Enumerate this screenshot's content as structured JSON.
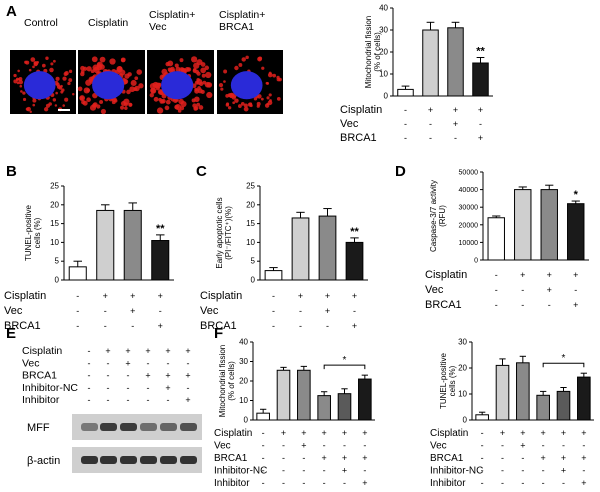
{
  "figure": {
    "panel_letters": [
      "A",
      "B",
      "C",
      "D",
      "E",
      "F"
    ],
    "image_panel": {
      "labels": [
        "Control",
        "Cisplatin",
        "Cisplatin+\nVec",
        "Cisplatin+\nBRCA1"
      ]
    },
    "western_blot": {
      "condition_rows": [
        {
          "label": "Cisplatin",
          "signs": [
            "-",
            "+",
            "+",
            "+",
            "+",
            "+"
          ]
        },
        {
          "label": "Vec",
          "signs": [
            "-",
            "-",
            "+",
            "-",
            "-",
            "-"
          ]
        },
        {
          "label": "BRCA1",
          "signs": [
            "-",
            "-",
            "-",
            "+",
            "+",
            "+"
          ]
        },
        {
          "label": "Inhibitor-NC",
          "signs": [
            "-",
            "-",
            "-",
            "-",
            "+",
            "-"
          ]
        },
        {
          "label": "Inhibitor",
          "signs": [
            "-",
            "-",
            "-",
            "-",
            "-",
            "+"
          ]
        }
      ],
      "bands": [
        {
          "label": "MFF",
          "intensity": [
            0.55,
            0.85,
            0.85,
            0.6,
            0.65,
            0.75
          ]
        },
        {
          "label": "β-actin",
          "intensity": [
            0.9,
            0.9,
            0.9,
            0.9,
            0.9,
            0.9
          ]
        }
      ]
    },
    "colors": {
      "bar_fills": [
        "#ffffff",
        "#cfcfcf",
        "#8a8a8a",
        "#1a1a1a"
      ],
      "f_extra_fill": "#5a5a5a",
      "image_bg": "#000000",
      "nucleus": "#2a2ad8",
      "mito": "#e0201c"
    }
  },
  "chart_data": [
    {
      "id": "A",
      "type": "bar",
      "ylabel": "Mitochondrial fission\n(% of cells)",
      "ylim": [
        0,
        40
      ],
      "yticks": [
        0,
        10,
        20,
        30,
        40
      ],
      "values": [
        3,
        30,
        31,
        15
      ],
      "errors": [
        1.5,
        3.5,
        2.5,
        2.5
      ],
      "marks": [
        "",
        "",
        "",
        "**"
      ],
      "condition_rows": [
        {
          "label": "Cisplatin",
          "signs": [
            "-",
            "+",
            "+",
            "+"
          ]
        },
        {
          "label": "Vec",
          "signs": [
            "-",
            "-",
            "+",
            "-"
          ]
        },
        {
          "label": "BRCA1",
          "signs": [
            "-",
            "-",
            "-",
            "+"
          ]
        }
      ]
    },
    {
      "id": "B",
      "type": "bar",
      "ylabel": "TUNEL-positive\ncells (%)",
      "ylim": [
        0,
        25
      ],
      "yticks": [
        0,
        5,
        10,
        15,
        20,
        25
      ],
      "values": [
        3.5,
        18.5,
        18.5,
        10.5
      ],
      "errors": [
        1.5,
        1.5,
        2,
        1.5
      ],
      "marks": [
        "",
        "",
        "",
        "**"
      ],
      "condition_rows": [
        {
          "label": "Cisplatin",
          "signs": [
            "-",
            "+",
            "+",
            "+"
          ]
        },
        {
          "label": "Vec",
          "signs": [
            "-",
            "-",
            "+",
            "-"
          ]
        },
        {
          "label": "BRCA1",
          "signs": [
            "-",
            "-",
            "-",
            "+"
          ]
        }
      ]
    },
    {
      "id": "C",
      "type": "bar",
      "ylabel": "Early apoptotic cells\n(PI⁻/FITC⁺)(%)",
      "ylim": [
        0,
        25
      ],
      "yticks": [
        0,
        5,
        10,
        15,
        20,
        25
      ],
      "values": [
        2.5,
        16.5,
        17,
        10
      ],
      "errors": [
        0.8,
        1.5,
        2,
        1.2
      ],
      "marks": [
        "",
        "",
        "",
        "**"
      ],
      "condition_rows": [
        {
          "label": "Cisplatin",
          "signs": [
            "-",
            "+",
            "+",
            "+"
          ]
        },
        {
          "label": "Vec",
          "signs": [
            "-",
            "-",
            "+",
            "-"
          ]
        },
        {
          "label": "BRCA1",
          "signs": [
            "-",
            "-",
            "-",
            "+"
          ]
        }
      ]
    },
    {
      "id": "D",
      "type": "bar",
      "ylabel": "Caspase-3/7 activity\n(RFU)",
      "ylim": [
        0,
        50000
      ],
      "yticks": [
        0,
        10000,
        20000,
        30000,
        40000,
        50000
      ],
      "values": [
        24000,
        40000,
        40000,
        32000
      ],
      "errors": [
        1000,
        1500,
        2500,
        1500
      ],
      "marks": [
        "",
        "",
        "",
        "*"
      ],
      "condition_rows": [
        {
          "label": "Cisplatin",
          "signs": [
            "-",
            "+",
            "+",
            "+"
          ]
        },
        {
          "label": "Vec",
          "signs": [
            "-",
            "-",
            "+",
            "-"
          ]
        },
        {
          "label": "BRCA1",
          "signs": [
            "-",
            "-",
            "-",
            "+"
          ]
        }
      ]
    },
    {
      "id": "F1",
      "type": "bar",
      "ylabel": "Mitochondrial fission\n(% of cells)",
      "ylim": [
        0,
        40
      ],
      "yticks": [
        0,
        10,
        20,
        30,
        40
      ],
      "values": [
        3.5,
        25.5,
        25.5,
        12.5,
        13.5,
        21
      ],
      "errors": [
        2,
        1.5,
        2,
        2,
        2.5,
        2
      ],
      "marks": [
        "",
        "",
        "",
        "",
        "",
        ""
      ],
      "bracket": {
        "from": 3,
        "to": 5,
        "label": "*"
      },
      "condition_rows": [
        {
          "label": "Cisplatin",
          "signs": [
            "-",
            "+",
            "+",
            "+",
            "+",
            "+"
          ]
        },
        {
          "label": "Vec",
          "signs": [
            "-",
            "-",
            "+",
            "-",
            "-",
            "-"
          ]
        },
        {
          "label": "BRCA1",
          "signs": [
            "-",
            "-",
            "-",
            "+",
            "+",
            "+"
          ]
        },
        {
          "label": "Inhibitor-NC",
          "signs": [
            "-",
            "-",
            "-",
            "-",
            "+",
            "-"
          ]
        },
        {
          "label": "Inhibitor",
          "signs": [
            "-",
            "-",
            "-",
            "-",
            "-",
            "+"
          ]
        }
      ]
    },
    {
      "id": "F2",
      "type": "bar",
      "ylabel": "TUNEL-positive\ncells (%)",
      "ylim": [
        0,
        30
      ],
      "yticks": [
        0,
        10,
        20,
        30
      ],
      "values": [
        2,
        21,
        22,
        9.5,
        11,
        16.5
      ],
      "errors": [
        1,
        2.5,
        2.5,
        1.5,
        1.5,
        1.5
      ],
      "marks": [
        "",
        "",
        "",
        "",
        "",
        ""
      ],
      "bracket": {
        "from": 3,
        "to": 5,
        "label": "*"
      },
      "condition_rows": [
        {
          "label": "Cisplatin",
          "signs": [
            "-",
            "+",
            "+",
            "+",
            "+",
            "+"
          ]
        },
        {
          "label": "Vec",
          "signs": [
            "-",
            "-",
            "+",
            "-",
            "-",
            "-"
          ]
        },
        {
          "label": "BRCA1",
          "signs": [
            "-",
            "-",
            "-",
            "+",
            "+",
            "+"
          ]
        },
        {
          "label": "Inhibitor-NC",
          "signs": [
            "-",
            "-",
            "-",
            "-",
            "+",
            "-"
          ]
        },
        {
          "label": "Inhibitor",
          "signs": [
            "-",
            "-",
            "-",
            "-",
            "-",
            "+"
          ]
        }
      ]
    }
  ]
}
